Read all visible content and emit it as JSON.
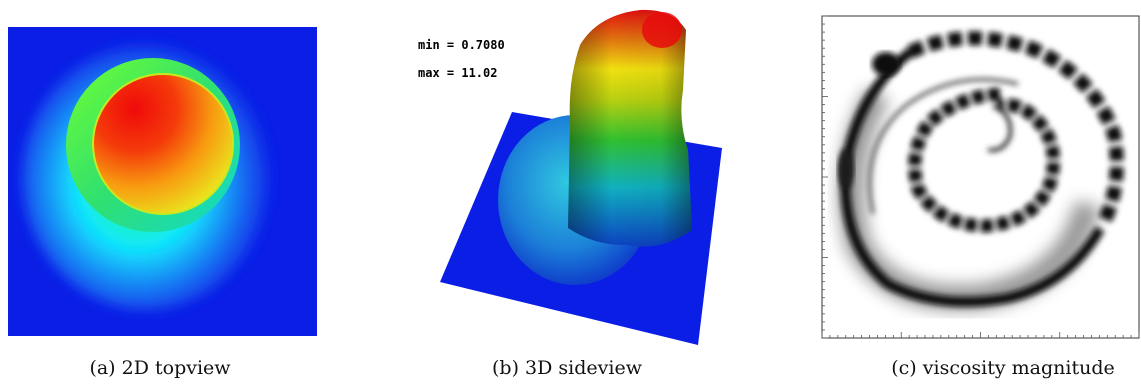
{
  "figure": {
    "panels": [
      {
        "caption": "(a) 2D topview"
      },
      {
        "caption": "(b) 3D sideview",
        "min_text": "min = 0.7080",
        "max_text": "max = 11.02"
      },
      {
        "caption": "(c) viscosity magnitude"
      }
    ]
  },
  "colors": {
    "background_blue": "#0a1ee6",
    "hot_red": "#f01010",
    "mid_green": "#28e020",
    "cyan": "#10e8ff"
  },
  "icons": []
}
